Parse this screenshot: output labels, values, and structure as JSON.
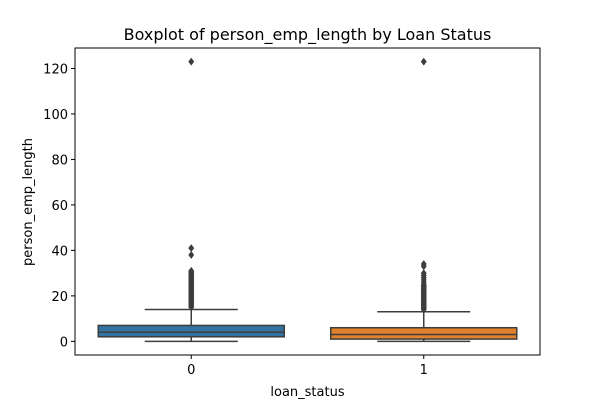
{
  "chart_data": {
    "type": "boxplot",
    "title": "Boxplot of person_emp_length by Loan Status",
    "xlabel": "loan_status",
    "ylabel": "person_emp_length",
    "ylim": [
      -6,
      129
    ],
    "yticks": [
      0,
      20,
      40,
      60,
      80,
      100,
      120
    ],
    "categories": [
      "0",
      "1"
    ],
    "colors": [
      "#3274a1",
      "#e1812c"
    ],
    "boxes": [
      {
        "category": "0",
        "whisker_low": 0,
        "q1": 2,
        "median": 4,
        "q3": 7,
        "whisker_high": 14,
        "outliers": [
          15,
          15.5,
          16,
          16.5,
          17,
          17.5,
          18,
          18.5,
          19,
          19.5,
          20,
          20.5,
          21,
          21.5,
          22,
          22.5,
          23,
          23.5,
          24,
          24.5,
          25,
          25.5,
          26,
          26.5,
          27,
          27.5,
          28,
          28.5,
          29,
          29.5,
          30,
          30.5,
          31,
          38,
          41,
          123
        ]
      },
      {
        "category": "1",
        "whisker_low": 0,
        "q1": 1,
        "median": 3,
        "q3": 6,
        "whisker_high": 13,
        "outliers": [
          14,
          14.5,
          15,
          15.5,
          16,
          16.5,
          17,
          17.5,
          18,
          18.5,
          19,
          19.5,
          20,
          20.5,
          21,
          21.5,
          22,
          22.5,
          23,
          23.5,
          24,
          24.5,
          25,
          26,
          27,
          28,
          29,
          30,
          33,
          34,
          123
        ]
      }
    ]
  }
}
